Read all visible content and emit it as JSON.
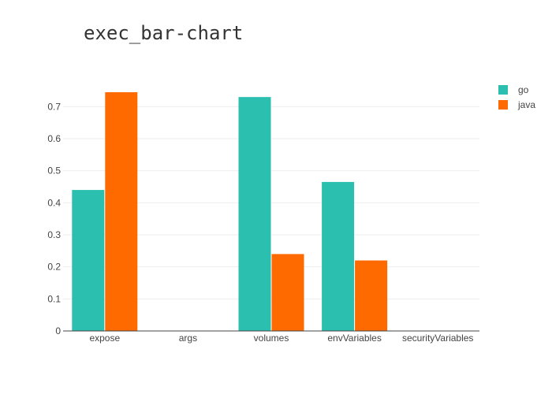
{
  "chart_data": {
    "type": "bar",
    "title": "exec_bar-chart",
    "xlabel": "",
    "ylabel": "",
    "categories": [
      "expose",
      "args",
      "volumes",
      "envVariables",
      "securityVariables"
    ],
    "series": [
      {
        "name": "go",
        "color": "#2bbfb0",
        "values": [
          0.44,
          0,
          0.73,
          0.465,
          0
        ]
      },
      {
        "name": "java",
        "color": "#ff6a00",
        "values": [
          0.745,
          0,
          0.24,
          0.22,
          0
        ]
      }
    ],
    "ylim": [
      0,
      0.75
    ],
    "yticks": [
      0,
      0.1,
      0.2,
      0.3,
      0.4,
      0.5,
      0.6,
      0.7
    ],
    "ytick_labels": [
      "0",
      "0.1",
      "0.2",
      "0.3",
      "0.4",
      "0.5",
      "0.6",
      "0.7"
    ],
    "grid": true,
    "legend_position": "top-right"
  }
}
